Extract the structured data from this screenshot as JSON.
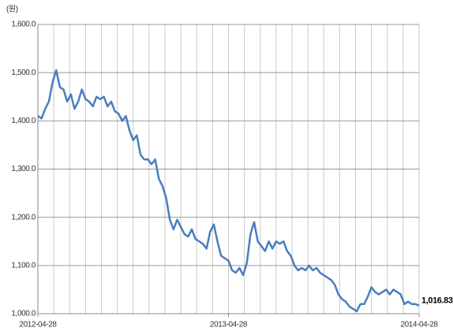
{
  "chart_data": {
    "type": "line",
    "y_unit_label": "(원)",
    "categories": [
      "2012-04-28",
      null,
      null,
      null,
      null,
      null,
      null,
      null,
      null,
      null,
      null,
      null,
      null,
      null,
      null,
      null,
      null,
      null,
      null,
      null,
      null,
      null,
      null,
      null,
      null,
      null,
      null,
      null,
      null,
      null,
      null,
      null,
      null,
      null,
      null,
      null,
      null,
      null,
      null,
      null,
      null,
      null,
      null,
      null,
      null,
      null,
      null,
      null,
      null,
      null,
      null,
      null,
      "2013-04-28",
      null,
      null,
      null,
      null,
      null,
      null,
      null,
      null,
      null,
      null,
      null,
      null,
      null,
      null,
      null,
      null,
      null,
      null,
      null,
      null,
      null,
      null,
      null,
      null,
      null,
      null,
      null,
      null,
      null,
      null,
      null,
      null,
      null,
      null,
      null,
      null,
      null,
      null,
      null,
      null,
      null,
      null,
      null,
      null,
      null,
      null,
      null,
      null,
      null,
      null,
      null,
      "2014-04-28"
    ],
    "series": [
      {
        "color": "#4a7ebb",
        "values": [
          1410,
          1405,
          1425,
          1440,
          1480,
          1505,
          1470,
          1465,
          1440,
          1455,
          1425,
          1440,
          1465,
          1445,
          1440,
          1430,
          1450,
          1445,
          1450,
          1430,
          1440,
          1420,
          1415,
          1400,
          1410,
          1380,
          1360,
          1370,
          1330,
          1320,
          1320,
          1310,
          1320,
          1280,
          1265,
          1240,
          1195,
          1175,
          1195,
          1180,
          1165,
          1160,
          1175,
          1155,
          1150,
          1145,
          1135,
          1170,
          1185,
          1150,
          1120,
          1115,
          1110,
          1090,
          1085,
          1095,
          1080,
          1105,
          1165,
          1190,
          1150,
          1140,
          1130,
          1150,
          1135,
          1150,
          1145,
          1150,
          1130,
          1120,
          1100,
          1090,
          1095,
          1090,
          1100,
          1090,
          1095,
          1085,
          1080,
          1075,
          1070,
          1060,
          1040,
          1030,
          1025,
          1015,
          1010,
          1005,
          1020,
          1020,
          1035,
          1055,
          1045,
          1040,
          1045,
          1050,
          1040,
          1050,
          1045,
          1040,
          1020,
          1025,
          1020,
          1020,
          1016.83
        ],
        "value_labels": [
          null,
          null,
          null,
          null,
          null,
          null,
          null,
          null,
          null,
          null,
          null,
          null,
          null,
          null,
          null,
          null,
          null,
          null,
          null,
          null,
          null,
          null,
          null,
          null,
          null,
          null,
          null,
          null,
          null,
          null,
          null,
          null,
          null,
          null,
          null,
          null,
          null,
          null,
          null,
          null,
          null,
          null,
          null,
          null,
          null,
          null,
          null,
          null,
          null,
          null,
          null,
          null,
          null,
          null,
          null,
          null,
          null,
          null,
          null,
          null,
          null,
          null,
          null,
          null,
          null,
          null,
          null,
          null,
          null,
          null,
          null,
          null,
          null,
          null,
          null,
          null,
          null,
          null,
          null,
          null,
          null,
          null,
          null,
          null,
          null,
          null,
          null,
          null,
          null,
          null,
          null,
          null,
          null,
          null,
          null,
          null,
          null,
          null,
          null,
          null,
          null,
          null,
          null,
          null,
          "1,016.83"
        ]
      }
    ],
    "ylim": [
      1000,
      1600
    ],
    "yticks": [
      {
        "value": 1000,
        "label": "1,000.0"
      },
      {
        "value": 1100,
        "label": "1,100.0"
      },
      {
        "value": 1200,
        "label": "1,200.0"
      },
      {
        "value": 1300,
        "label": "1,300.0"
      },
      {
        "value": 1400,
        "label": "1,400.0"
      },
      {
        "value": 1500,
        "label": "1,500.0"
      },
      {
        "value": 1600,
        "label": "1,600.0"
      }
    ],
    "grid": true
  }
}
